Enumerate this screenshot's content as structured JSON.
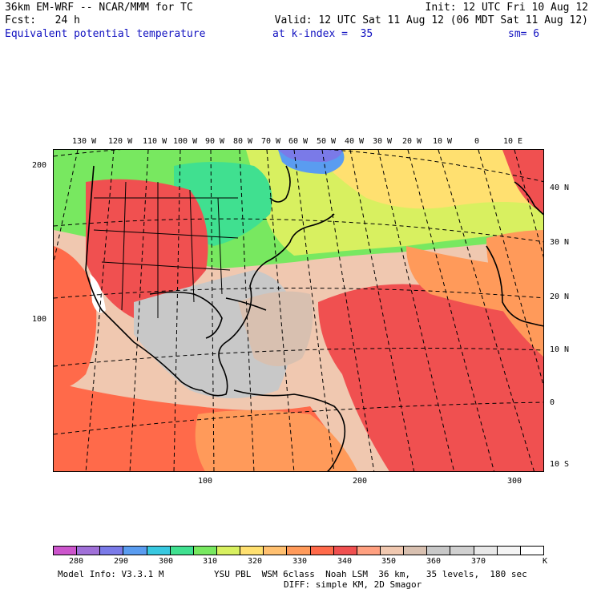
{
  "header": {
    "line1_left": "36km EM-WRF -- NCAR/MMM for TC",
    "line1_right": "Init: 12 UTC Fri 10 Aug 12",
    "line2_left": "Fcst:   24 h",
    "line2_right": "Valid: 12 UTC Sat 11 Aug 12 (06 MDT Sat 11 Aug 12)",
    "field_name": "Equivalent potential temperature",
    "level": "at k-index =  35",
    "smoothing": "sm= 6"
  },
  "longitude_labels": [
    "130 W",
    "120 W",
    "110 W",
    "100 W",
    "90 W",
    "80 W",
    "70 W",
    "60 W",
    "50 W",
    "40 W",
    "30 W",
    "20 W",
    "10 W",
    "0",
    "10 E"
  ],
  "latitude_labels": [
    "40 N",
    "30 N",
    "20 N",
    "10 N",
    "0",
    "10 S"
  ],
  "y_grid_labels": [
    "200",
    "100"
  ],
  "x_grid_labels": [
    "100",
    "200",
    "300"
  ],
  "colorbar": {
    "labels": [
      "280",
      "290",
      "300",
      "310",
      "320",
      "330",
      "340",
      "350",
      "360",
      "370"
    ],
    "unit": "K",
    "colors": [
      "#cc55cc",
      "#a070d8",
      "#7a7ae8",
      "#5a9cf0",
      "#38c8e0",
      "#40e090",
      "#78e860",
      "#d8f060",
      "#ffe070",
      "#ffc070",
      "#ff9a5a",
      "#ff6a4a",
      "#f05050",
      "#ffa080",
      "#f0c8b0",
      "#d8c0b0",
      "#c8c8c8",
      "#d0d0d0",
      "#e8e8e8",
      "#f4f4f4",
      "#ffffff"
    ]
  },
  "footer": {
    "model_info": "Model Info: V3.3.1 M",
    "physics": "YSU PBL  WSM 6class  Noah LSM  36 km,   35 levels,  180 sec",
    "diffusion": "DIFF: simple KM, 2D Smagor"
  }
}
